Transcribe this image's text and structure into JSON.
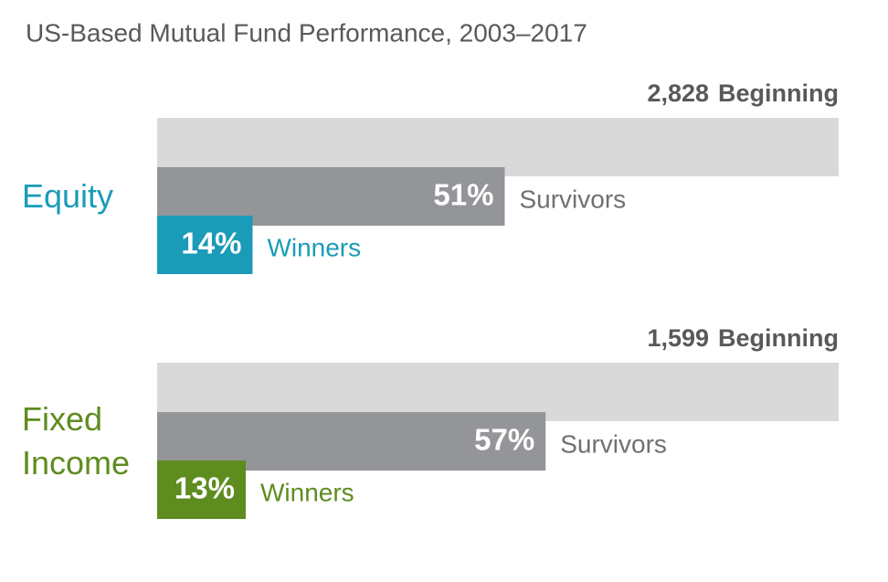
{
  "chart_data": {
    "type": "bar",
    "title": "US-Based Mutual Fund Performance, 2003–2017",
    "categories": [
      "Equity",
      "Fixed Income"
    ],
    "category_colors": [
      "#1a9bb8",
      "#5e8c1f"
    ],
    "xlim": [
      0,
      100
    ],
    "series": [
      {
        "name": "Beginning",
        "color": "#d9d9d9",
        "values": [
          2828,
          1599
        ],
        "value_labels": [
          "2,828",
          "1,599"
        ]
      },
      {
        "name": "Survivors",
        "color": "#939598",
        "values": [
          51,
          57
        ],
        "value_labels": [
          "51%",
          "57%"
        ]
      },
      {
        "name": "Winners",
        "colors": [
          "#1a9bb8",
          "#5e8c1f"
        ],
        "values": [
          14,
          13
        ],
        "value_labels": [
          "14%",
          "13%"
        ]
      }
    ]
  }
}
